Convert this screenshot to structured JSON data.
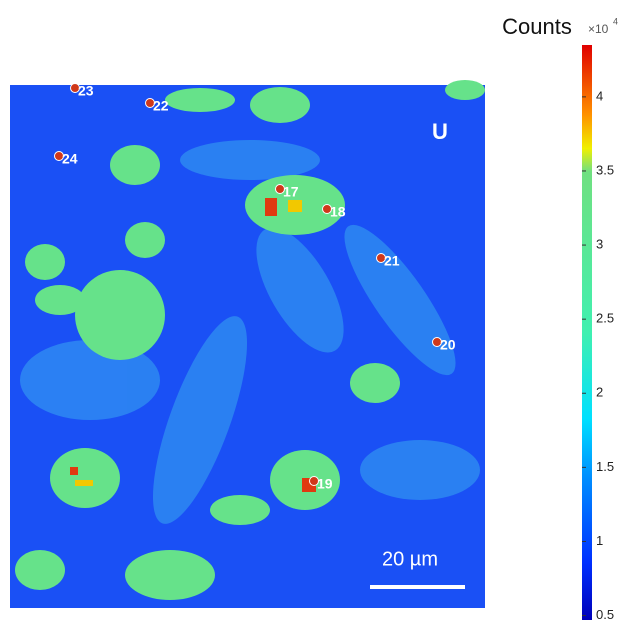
{
  "colorbar": {
    "title": "Counts",
    "multiplier": "×10",
    "exponent": "4",
    "range": [
      0.47,
      4.35
    ],
    "ticks": [
      0.5,
      1,
      1.5,
      2,
      2.5,
      3,
      3.5,
      4
    ]
  },
  "panel_label": "U",
  "points": [
    {
      "label": "17"
    },
    {
      "label": "18"
    },
    {
      "label": "19"
    },
    {
      "label": "20"
    },
    {
      "label": "21"
    },
    {
      "label": "22"
    },
    {
      "label": "23"
    },
    {
      "label": "24"
    }
  ],
  "scale_bar": {
    "label": "20 µm"
  }
}
